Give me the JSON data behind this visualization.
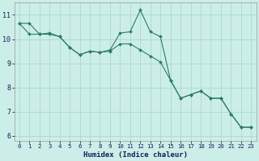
{
  "background_color": "#cceee8",
  "grid_color": "#aad8d0",
  "line_color": "#2d7a6e",
  "marker_color": "#2d7a6e",
  "xlabel": "Humidex (Indice chaleur)",
  "xlim": [
    -0.5,
    23.5
  ],
  "ylim": [
    5.8,
    11.5
  ],
  "xticks": [
    0,
    1,
    2,
    3,
    4,
    5,
    6,
    7,
    8,
    9,
    10,
    11,
    12,
    13,
    14,
    15,
    16,
    17,
    18,
    19,
    20,
    21,
    22,
    23
  ],
  "yticks": [
    6,
    7,
    8,
    9,
    10,
    11
  ],
  "line1_x": [
    0,
    1,
    2,
    3,
    4,
    5,
    6,
    7,
    8,
    9,
    10,
    11,
    12,
    13,
    14,
    15,
    16,
    17,
    18,
    19,
    20,
    21,
    22,
    23
  ],
  "line1_y": [
    10.65,
    10.65,
    10.2,
    10.25,
    10.1,
    9.65,
    9.35,
    9.5,
    9.45,
    9.55,
    10.25,
    10.3,
    11.2,
    10.3,
    10.1,
    8.3,
    7.55,
    7.7,
    7.85,
    7.55,
    7.55,
    6.9,
    6.35,
    6.35
  ],
  "line2_x": [
    0,
    1,
    2,
    3,
    4,
    5,
    6,
    7,
    8,
    9,
    10,
    11,
    12,
    13,
    14,
    15,
    16,
    17,
    18,
    19,
    20,
    21,
    22,
    23
  ],
  "line2_y": [
    10.65,
    10.2,
    10.2,
    10.2,
    10.1,
    9.65,
    9.35,
    9.5,
    9.45,
    9.5,
    9.8,
    9.8,
    9.55,
    9.3,
    9.05,
    8.3,
    7.55,
    7.7,
    7.85,
    7.55,
    7.55,
    6.9,
    6.35,
    6.35
  ]
}
